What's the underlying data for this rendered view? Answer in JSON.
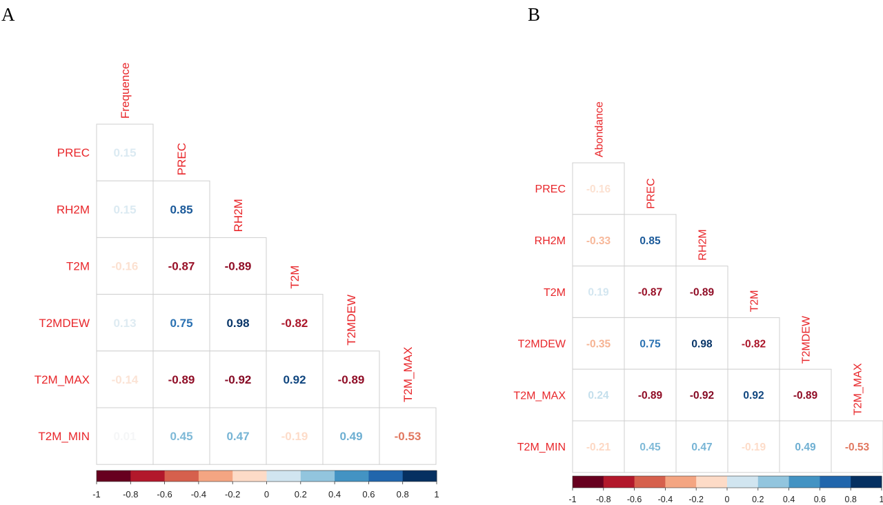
{
  "palette": [
    "#67001F",
    "#B2182B",
    "#D6604D",
    "#F4A582",
    "#FDDBC7",
    "#F7F7F7",
    "#D1E5F0",
    "#92C5DE",
    "#4393C3",
    "#2166AC",
    "#053061"
  ],
  "label_color": "#E8262A",
  "chart_data": [
    {
      "type": "heatmap",
      "panel_label": "A",
      "columns": [
        "Frequence",
        "PREC",
        "RH2M",
        "T2M",
        "T2MDEW",
        "T2M_MAX"
      ],
      "rows": [
        "PREC",
        "RH2M",
        "T2M",
        "T2MDEW",
        "T2M_MAX",
        "T2M_MIN"
      ],
      "values": [
        [
          "0.15"
        ],
        [
          "0.15",
          "0.85"
        ],
        [
          "-0.16",
          "-0.87",
          "-0.89"
        ],
        [
          "0.13",
          "0.75",
          "0.98",
          "-0.82"
        ],
        [
          "-0.14",
          "-0.89",
          "-0.92",
          "0.92",
          "-0.89"
        ],
        [
          "0.01",
          "0.45",
          "0.47",
          "-0.19",
          "0.49",
          "-0.53"
        ]
      ],
      "colorbar": {
        "range": [
          -1,
          1
        ],
        "ticks": [
          "-1",
          "-0.8",
          "-0.6",
          "-0.4",
          "-0.2",
          "0",
          "0.2",
          "0.4",
          "0.6",
          "0.8",
          "1"
        ]
      },
      "triangle": "lower"
    },
    {
      "type": "heatmap",
      "panel_label": "B",
      "columns": [
        "Abondance",
        "PREC",
        "RH2M",
        "T2M",
        "T2MDEW",
        "T2M_MAX"
      ],
      "rows": [
        "PREC",
        "RH2M",
        "T2M",
        "T2MDEW",
        "T2M_MAX",
        "T2M_MIN"
      ],
      "values": [
        [
          "-0.16"
        ],
        [
          "-0.33",
          "0.85"
        ],
        [
          "0.19",
          "-0.87",
          "-0.89"
        ],
        [
          "-0.35",
          "0.75",
          "0.98",
          "-0.82"
        ],
        [
          "0.24",
          "-0.89",
          "-0.92",
          "0.92",
          "-0.89"
        ],
        [
          "-0.21",
          "0.45",
          "0.47",
          "-0.19",
          "0.49",
          "-0.53"
        ]
      ],
      "colorbar": {
        "range": [
          -1,
          1
        ],
        "ticks": [
          "-1",
          "-0.8",
          "-0.6",
          "-0.4",
          "-0.2",
          "0",
          "0.2",
          "0.4",
          "0.6",
          "0.8",
          "1"
        ]
      },
      "triangle": "lower"
    }
  ]
}
